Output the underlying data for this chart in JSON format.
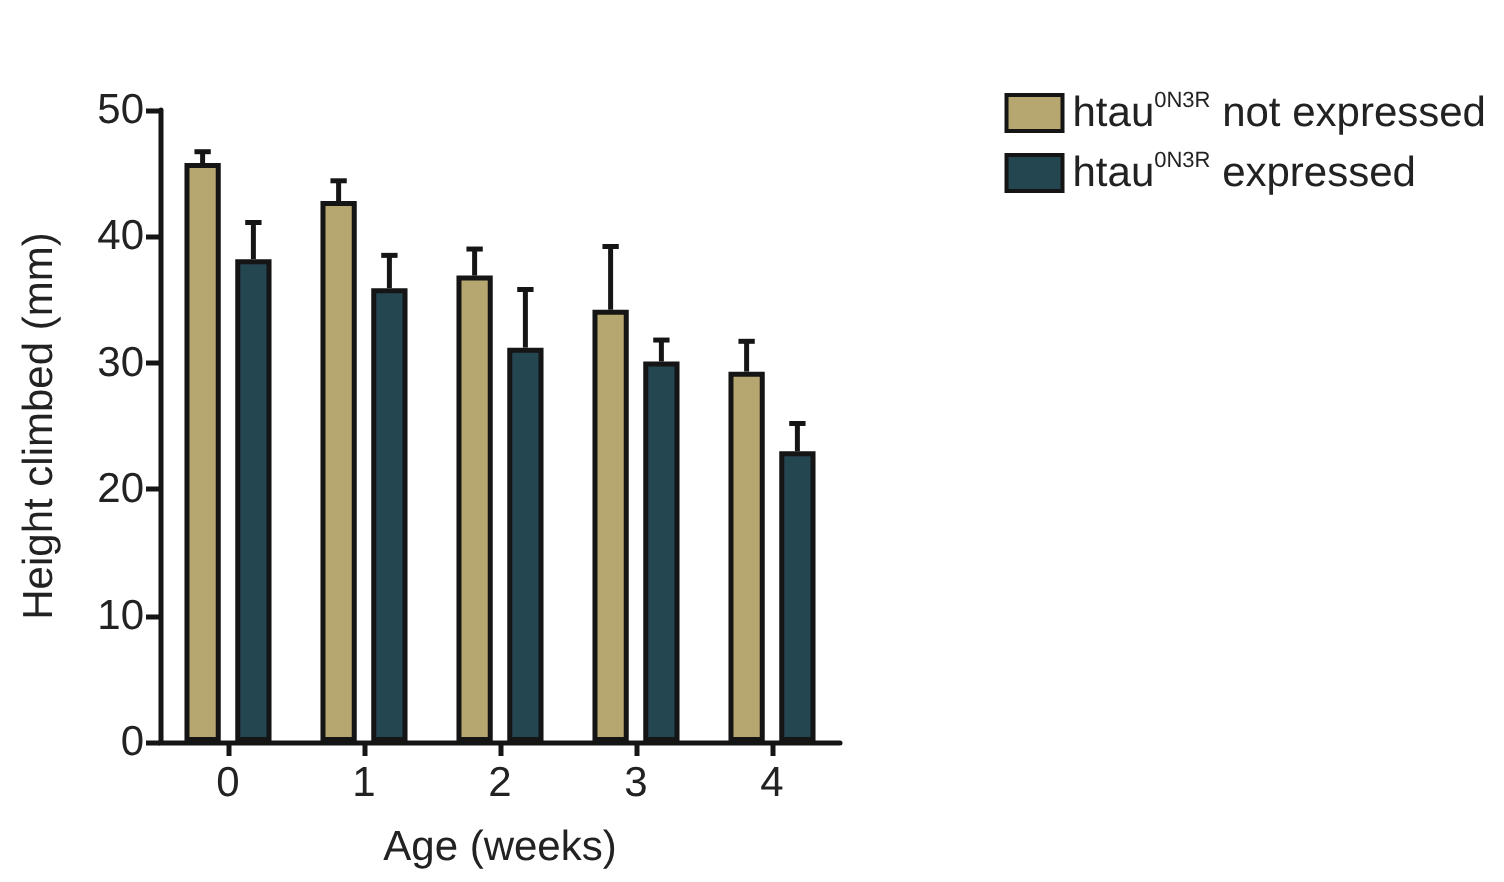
{
  "chart_data": {
    "type": "bar",
    "xlabel": "Age (weeks)",
    "ylabel": "Height climbed (mm)",
    "categories": [
      "0",
      "1",
      "2",
      "3",
      "4"
    ],
    "series": [
      {
        "name": "htau$^{0N3R}$ not expressed",
        "color": "#b5a76f",
        "values": [
          45.8,
          42.8,
          36.9,
          34.2,
          29.3
        ],
        "errors": [
          [
            45.8,
            46.7
          ],
          [
            42.8,
            44.4
          ],
          [
            36.9,
            39.0
          ],
          [
            34.2,
            39.2
          ],
          [
            29.3,
            31.7
          ]
        ]
      },
      {
        "name": "htau$^{0N3R}$ expressed",
        "color": "#244650",
        "values": [
          38.2,
          35.9,
          31.2,
          30.1,
          23.0
        ],
        "errors": [
          [
            38.2,
            41.1
          ],
          [
            35.9,
            38.5
          ],
          [
            31.2,
            35.8
          ],
          [
            30.1,
            31.8
          ],
          [
            23.0,
            25.2
          ]
        ]
      }
    ],
    "ylim": [
      0,
      50
    ],
    "yticks": [
      0,
      10,
      20,
      30,
      40,
      50
    ],
    "grid": false,
    "legend": "top right"
  }
}
